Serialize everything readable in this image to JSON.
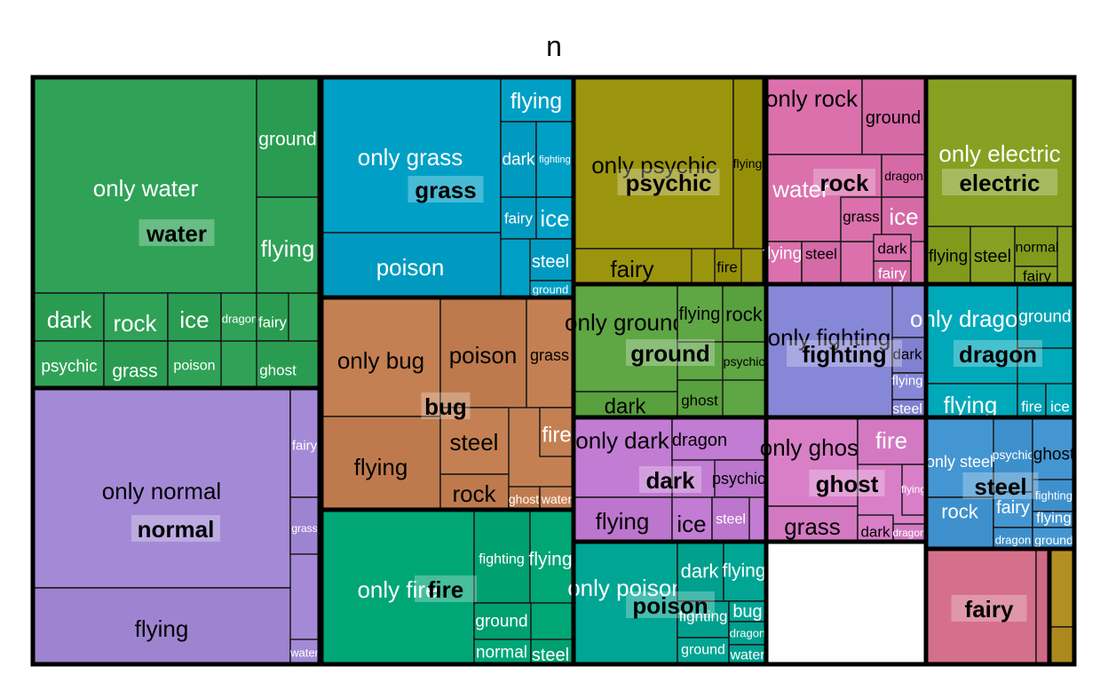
{
  "chart_data": {
    "type": "treemap",
    "title": "n",
    "groups": [
      {
        "name": "water",
        "color": "#2FA257",
        "subgroups": [
          {
            "label": "only water",
            "value": 63
          },
          {
            "label": "ground",
            "value": 10
          },
          {
            "label": "flying",
            "value": 8
          },
          {
            "label": "dark",
            "value": 7
          },
          {
            "label": "rock",
            "value": 6
          },
          {
            "label": "ice",
            "value": 5
          },
          {
            "label": "dragon",
            "value": 4
          },
          {
            "label": "fairy",
            "value": 4
          },
          {
            "label": "psychic",
            "value": 5
          },
          {
            "label": "grass",
            "value": 3
          },
          {
            "label": "poison",
            "value": 3
          },
          {
            "label": "ghost",
            "value": 2
          }
        ]
      },
      {
        "name": "normal",
        "color": "#A48AD6",
        "subgroups": [
          {
            "label": "only normal",
            "value": 61
          },
          {
            "label": "flying",
            "value": 24
          },
          {
            "label": "fairy",
            "value": 5
          },
          {
            "label": "grass",
            "value": 2
          },
          {
            "label": "water",
            "value": 1
          }
        ]
      },
      {
        "name": "grass",
        "color": "#00A0C6",
        "subgroups": [
          {
            "label": "only grass",
            "value": 38
          },
          {
            "label": "poison",
            "value": 14
          },
          {
            "label": "flying",
            "value": 6
          },
          {
            "label": "dark",
            "value": 3
          },
          {
            "label": "fighting",
            "value": 3
          },
          {
            "label": "fairy",
            "value": 4
          },
          {
            "label": "ice",
            "value": 4
          },
          {
            "label": "steel",
            "value": 3
          },
          {
            "label": "ground",
            "value": 1
          }
        ]
      },
      {
        "name": "bug",
        "color": "#C48052",
        "subgroups": [
          {
            "label": "only bug",
            "value": 19
          },
          {
            "label": "poison",
            "value": 12
          },
          {
            "label": "grass",
            "value": 6
          },
          {
            "label": "flying",
            "value": 14
          },
          {
            "label": "steel",
            "value": 7
          },
          {
            "label": "rock",
            "value": 4
          },
          {
            "label": "fire",
            "value": 2
          },
          {
            "label": "ghost",
            "value": 1
          },
          {
            "label": "water",
            "value": 1
          }
        ]
      },
      {
        "name": "fire",
        "color": "#00A676",
        "subgroups": [
          {
            "label": "only fire",
            "value": 34
          },
          {
            "label": "fighting",
            "value": 7
          },
          {
            "label": "flying",
            "value": 6
          },
          {
            "label": "ground",
            "value": 3
          },
          {
            "label": "normal",
            "value": 2
          },
          {
            "label": "steel",
            "value": 1
          }
        ]
      },
      {
        "name": "psychic",
        "color": "#9B950E",
        "subgroups": [
          {
            "label": "only psychic",
            "value": 38
          },
          {
            "label": "flying",
            "value": 6
          },
          {
            "label": "fairy",
            "value": 9
          },
          {
            "label": "fire",
            "value": 2
          }
        ]
      },
      {
        "name": "ground",
        "color": "#5FA644",
        "subgroups": [
          {
            "label": "only ground",
            "value": 14
          },
          {
            "label": "dark",
            "value": 3
          },
          {
            "label": "flying",
            "value": 4
          },
          {
            "label": "rock",
            "value": 3
          },
          {
            "label": "psychic",
            "value": 3
          },
          {
            "label": "ghost",
            "value": 2
          }
        ]
      },
      {
        "name": "dark",
        "color": "#C27CD3",
        "subgroups": [
          {
            "label": "only dark",
            "value": 15
          },
          {
            "label": "flying",
            "value": 6
          },
          {
            "label": "dragon",
            "value": 4
          },
          {
            "label": "psychic",
            "value": 3
          },
          {
            "label": "ice",
            "value": 3
          },
          {
            "label": "steel",
            "value": 2
          }
        ]
      },
      {
        "name": "poison",
        "color": "#00A594",
        "subgroups": [
          {
            "label": "only poison",
            "value": 15
          },
          {
            "label": "dark",
            "value": 4
          },
          {
            "label": "flying",
            "value": 3
          },
          {
            "label": "fighting",
            "value": 3
          },
          {
            "label": "bug",
            "value": 2
          },
          {
            "label": "dragon",
            "value": 2
          },
          {
            "label": "ground",
            "value": 2
          },
          {
            "label": "water",
            "value": 1
          }
        ]
      },
      {
        "name": "rock",
        "color": "#DB70AC",
        "subgroups": [
          {
            "label": "only rock",
            "value": 8
          },
          {
            "label": "ground",
            "value": 6
          },
          {
            "label": "water",
            "value": 6
          },
          {
            "label": "dragon",
            "value": 2
          },
          {
            "label": "grass",
            "value": 2
          },
          {
            "label": "ice",
            "value": 2
          },
          {
            "label": "flying",
            "value": 2
          },
          {
            "label": "steel",
            "value": 2
          },
          {
            "label": "dark",
            "value": 1
          },
          {
            "label": "fairy",
            "value": 1
          }
        ]
      },
      {
        "name": "fighting",
        "color": "#8787D7",
        "subgroups": [
          {
            "label": "only fighting",
            "value": 28
          },
          {
            "label": "dark",
            "value": 2
          },
          {
            "label": "flying",
            "value": 2
          },
          {
            "label": "steel",
            "value": 1
          }
        ]
      },
      {
        "name": "ghost",
        "color": "#D97FC8",
        "subgroups": [
          {
            "label": "only ghost",
            "value": 17
          },
          {
            "label": "fire",
            "value": 4
          },
          {
            "label": "flying",
            "value": 3
          },
          {
            "label": "grass",
            "value": 6
          },
          {
            "label": "dark",
            "value": 2
          },
          {
            "label": "dragon",
            "value": 2
          }
        ]
      },
      {
        "name": "electric",
        "color": "#87A022",
        "subgroups": [
          {
            "label": "only electric",
            "value": 31
          },
          {
            "label": "flying",
            "value": 3
          },
          {
            "label": "steel",
            "value": 3
          },
          {
            "label": "normal",
            "value": 2
          },
          {
            "label": "fairy",
            "value": 2
          }
        ]
      },
      {
        "name": "dragon",
        "color": "#00A9BA",
        "subgroups": [
          {
            "label": "only dragon",
            "value": 14
          },
          {
            "label": "ground",
            "value": 5
          },
          {
            "label": "flying",
            "value": 5
          },
          {
            "label": "fire",
            "value": 1
          },
          {
            "label": "ice",
            "value": 1
          }
        ]
      },
      {
        "name": "steel",
        "color": "#4496D3",
        "subgroups": [
          {
            "label": "only steel",
            "value": 8
          },
          {
            "label": "psychic",
            "value": 6
          },
          {
            "label": "ghost",
            "value": 3
          },
          {
            "label": "rock",
            "value": 3
          },
          {
            "label": "fairy",
            "value": 2
          },
          {
            "label": "fighting",
            "value": 1
          },
          {
            "label": "flying",
            "value": 1
          },
          {
            "label": "dragon",
            "value": 1
          },
          {
            "label": "ground",
            "value": 1
          }
        ]
      },
      {
        "name": "fairy",
        "color": "#D5708A",
        "subgroups": [
          {
            "label": "",
            "value": 16
          },
          {
            "label": "",
            "value": 1
          },
          {
            "label": "",
            "value": 1
          }
        ]
      },
      {
        "name": "",
        "color": "#B38F23",
        "subgroups": [
          {
            "label": "",
            "value": 1
          },
          {
            "label": "",
            "value": 1
          }
        ]
      }
    ]
  }
}
